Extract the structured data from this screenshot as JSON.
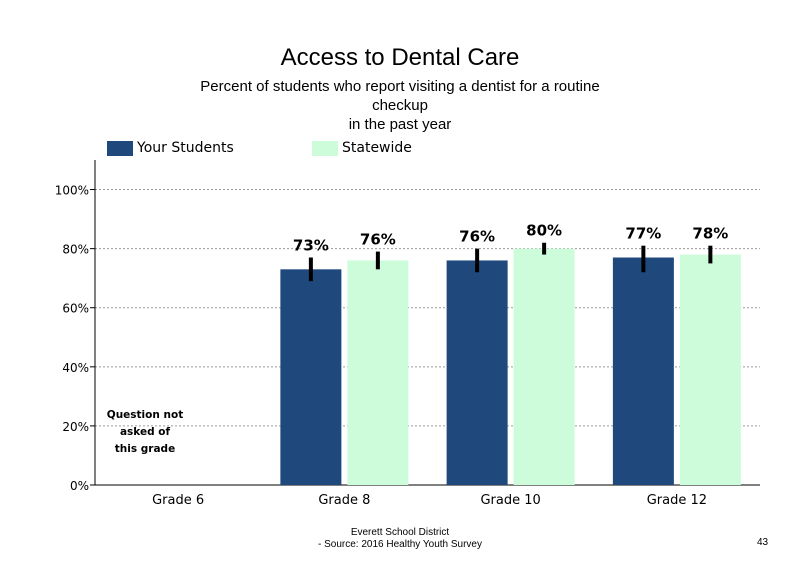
{
  "chart_data": {
    "type": "bar",
    "title": "Access to Dental Care",
    "subtitle_lines": [
      "Percent of students who report visiting a dentist for a routine",
      "checkup",
      "in the past year"
    ],
    "categories": [
      "Grade 6",
      "Grade 8",
      "Grade 10",
      "Grade 12"
    ],
    "series": [
      {
        "name": "Your Students",
        "color": "#1f497d",
        "values": [
          null,
          73,
          76,
          77
        ],
        "labels": [
          "",
          "73%",
          "76%",
          "77%"
        ],
        "err_low": [
          null,
          69,
          72,
          72
        ],
        "err_high": [
          null,
          77,
          80,
          81
        ]
      },
      {
        "name": "Statewide",
        "color": "#ccfcda",
        "values": [
          null,
          76,
          80,
          78
        ],
        "labels": [
          "",
          "76%",
          "80%",
          "78%"
        ],
        "err_low": [
          null,
          73,
          78,
          75
        ],
        "err_high": [
          null,
          79,
          82,
          81
        ]
      }
    ],
    "ylim": [
      0,
      110
    ],
    "yticks": [
      0,
      20,
      40,
      60,
      80,
      100
    ],
    "ytick_labels": [
      "0%",
      "20%",
      "40%",
      "60%",
      "80%",
      "100%"
    ],
    "grid": "dotted horizontal",
    "legend": "top-left",
    "note": [
      "Question not",
      "asked of",
      "this grade"
    ]
  },
  "footer": {
    "line1": "Everett School District",
    "line2": "- Source: 2016 Healthy Youth Survey",
    "page_number": "43"
  }
}
